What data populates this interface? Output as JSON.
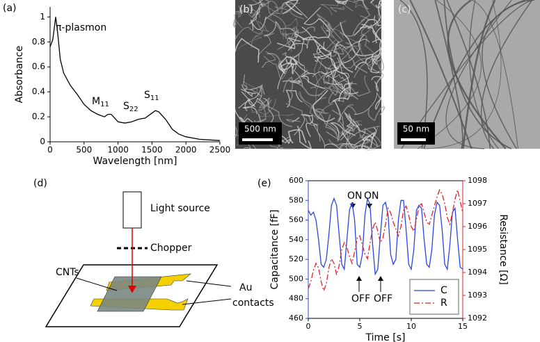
{
  "panel_labels": [
    "(a)",
    "(b)",
    "(c)",
    "(d)",
    "(e)"
  ],
  "images": [
    {
      "scale_bar": "500 nm"
    },
    {
      "scale_bar": "50 nm"
    }
  ],
  "diagram": {
    "light_source": "Light source",
    "chopper": "Chopper",
    "cnts": "CNTs",
    "contacts": [
      "Au",
      "contacts"
    ]
  },
  "chart_data": [
    {
      "type": "line",
      "x_label": "Wavelength [nm]",
      "y_label": "Absorbance",
      "color": "#000000",
      "x": [
        0,
        40,
        82,
        110,
        150,
        200,
        300,
        400,
        500,
        600,
        700,
        800,
        850,
        900,
        950,
        1000,
        1100,
        1200,
        1300,
        1400,
        1500,
        1550,
        1600,
        1700,
        1800,
        1900,
        2000,
        2200,
        2500
      ],
      "values": [
        0.76,
        0.82,
        1.0,
        0.88,
        0.66,
        0.55,
        0.45,
        0.38,
        0.3,
        0.25,
        0.22,
        0.2,
        0.22,
        0.22,
        0.19,
        0.16,
        0.15,
        0.16,
        0.18,
        0.19,
        0.23,
        0.25,
        0.24,
        0.18,
        0.1,
        0.06,
        0.04,
        0.02,
        0.01
      ],
      "xlim": [
        0,
        2500
      ],
      "xticks": [
        0,
        500,
        1000,
        1500,
        2000,
        2500
      ],
      "ylim": [
        0,
        1.08
      ],
      "yticks": [
        0,
        0.2,
        0.4,
        0.6,
        0.8,
        1
      ],
      "annotations": [
        {
          "text": "π-plasmon"
        },
        {
          "text": "M",
          "sub": "11"
        },
        {
          "text": "S",
          "sub": "22"
        },
        {
          "text": "S",
          "sub": "11"
        }
      ]
    },
    {
      "type": "line",
      "x_label": "Time [s]",
      "y_label": "Capacitance [fF]",
      "y2_label": "Resistance [Ω]",
      "frame": true,
      "color_axes": true,
      "legend": "lower right",
      "x": [
        0,
        0.25,
        0.5,
        0.75,
        1,
        1.25,
        1.5,
        1.75,
        2,
        2.25,
        2.5,
        2.75,
        3,
        3.25,
        3.5,
        3.75,
        4,
        4.25,
        4.5,
        4.75,
        5,
        5.25,
        5.5,
        5.75,
        6,
        6.25,
        6.5,
        6.75,
        7,
        7.25,
        7.5,
        7.75,
        8,
        8.25,
        8.5,
        8.75,
        9,
        9.25,
        9.5,
        9.75,
        10,
        10.25,
        10.5,
        10.75,
        11,
        11.25,
        11.5,
        11.75,
        12,
        12.25,
        12.5,
        12.75,
        13,
        13.25,
        13.5,
        13.75,
        14,
        14.25,
        14.5,
        14.75,
        15
      ],
      "series": [
        {
          "name": "C",
          "color": "#2b45e0",
          "linestyle": "solid",
          "values": [
            570,
            565,
            568,
            560,
            540,
            515,
            512,
            520,
            545,
            575,
            582,
            575,
            545,
            515,
            510,
            540,
            570,
            578,
            560,
            515,
            512,
            525,
            565,
            582,
            575,
            535,
            505,
            510,
            545,
            575,
            578,
            565,
            525,
            515,
            520,
            560,
            580,
            580,
            550,
            515,
            510,
            530,
            570,
            575,
            572,
            540,
            515,
            512,
            530,
            565,
            578,
            575,
            550,
            515,
            510,
            535,
            568,
            572,
            540,
            512,
            510
          ]
        },
        {
          "name": "R",
          "color": "#e0202a",
          "linestyle": "dashdot",
          "axis": "y2",
          "values": [
            1093.3,
            1093.6,
            1094.1,
            1094.4,
            1094.2,
            1093.6,
            1093.2,
            1093.5,
            1094.2,
            1094.6,
            1094.4,
            1093.9,
            1094.3,
            1095.0,
            1095.3,
            1095.1,
            1094.7,
            1094.4,
            1094.9,
            1095.5,
            1095.6,
            1095.2,
            1094.8,
            1094.6,
            1095.3,
            1095.9,
            1096.2,
            1095.8,
            1095.3,
            1095.5,
            1096.1,
            1096.8,
            1096.6,
            1096.2,
            1095.9,
            1095.6,
            1096.0,
            1096.7,
            1096.9,
            1096.5,
            1096.0,
            1095.8,
            1096.3,
            1096.9,
            1097.0,
            1096.6,
            1096.2,
            1096.1,
            1096.5,
            1096.9,
            1097.3,
            1097.6,
            1097.4,
            1097.0,
            1096.4,
            1096.1,
            1096.6,
            1097.2,
            1097.6,
            1097.1,
            1096.6
          ]
        }
      ],
      "xlim": [
        0,
        15
      ],
      "xticks": [
        0,
        5,
        10,
        15
      ],
      "ylim": [
        460,
        600
      ],
      "yticks": [
        460,
        480,
        500,
        520,
        540,
        560,
        580,
        600
      ],
      "y2lim": [
        1092,
        1098
      ],
      "y2ticks": [
        1092,
        1093,
        1094,
        1095,
        1096,
        1097,
        1098
      ],
      "annotations": [
        {
          "text": "ON"
        },
        {
          "text": "ON"
        },
        {
          "text": "OFF"
        },
        {
          "text": "OFF"
        }
      ]
    }
  ]
}
